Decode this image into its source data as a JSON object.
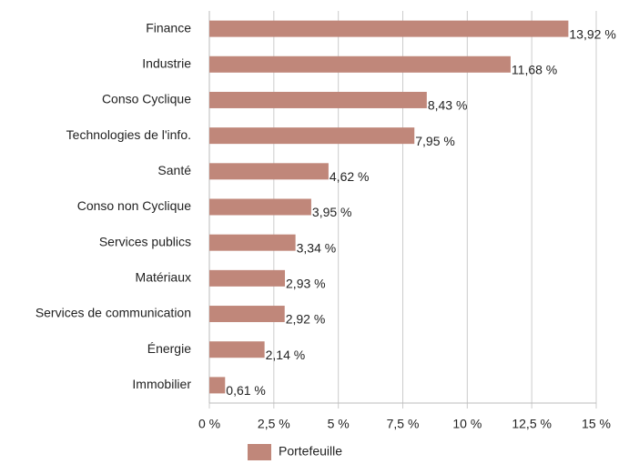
{
  "chart_data": {
    "type": "barh",
    "categories": [
      "Finance",
      "Industrie",
      "Conso Cyclique",
      "Technologies de l'info.",
      "Santé",
      "Conso non Cyclique",
      "Services publics",
      "Matériaux",
      "Services de communication",
      "Énergie",
      "Immobilier"
    ],
    "series": [
      {
        "name": "Portefeuille",
        "color": "#c0877a",
        "values": [
          13.92,
          11.68,
          8.43,
          7.95,
          4.62,
          3.95,
          3.34,
          2.93,
          2.92,
          2.14,
          0.61
        ],
        "value_labels": [
          "13,92 %",
          "11,68 %",
          "8,43 %",
          "7,95 %",
          "4,62 %",
          "3,95 %",
          "3,34 %",
          "2,93 %",
          "2,92 %",
          "2,14 %",
          "0,61 %"
        ]
      }
    ],
    "xlim": [
      0,
      15
    ],
    "xticks": [
      {
        "value": 0,
        "label": "0 %"
      },
      {
        "value": 2.5,
        "label": "2,5 %"
      },
      {
        "value": 5,
        "label": "5 %"
      },
      {
        "value": 7.5,
        "label": "7,5 %"
      },
      {
        "value": 10,
        "label": "10 %"
      },
      {
        "value": 12.5,
        "label": "12,5 %"
      },
      {
        "value": 15,
        "label": "15 %"
      }
    ],
    "grid": true,
    "legend": "bottom"
  }
}
